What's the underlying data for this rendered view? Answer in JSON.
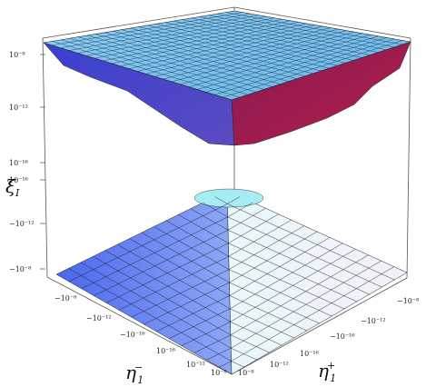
{
  "chart_data": {
    "type": "surface3d",
    "title": "",
    "zlabel": {
      "main": "ξ",
      "sub": "I"
    },
    "xlabel": {
      "main": "η",
      "sub": "1",
      "sup": "−"
    },
    "ylabel": {
      "main": "η",
      "sub": "1",
      "sup": "+"
    },
    "z_ticks": [
      "10⁻⁸",
      "10⁻¹²",
      "10⁻¹⁶",
      "10⁻¹⁶",
      "−10⁻¹²",
      "−10⁻⁸"
    ],
    "x_ticks": [
      "−10⁻⁸",
      "−10⁻¹²",
      "−10⁻¹⁶",
      "10⁻¹⁶",
      "10⁻¹²",
      "10⁻⁸"
    ],
    "y_ticks": [
      "−10⁻⁸",
      "−10⁻¹²",
      "−10⁻¹⁶",
      "10⁻¹⁶",
      "10⁻¹²",
      "10⁻⁸"
    ],
    "surfaces": [
      {
        "name": "upper",
        "shape": "inverted pyramid",
        "top_color": "#7fc3ee",
        "left_side_color": "#4a4bd0",
        "right_side_color": "#a01a4c"
      },
      {
        "name": "lower",
        "shape": "pyramid",
        "left_side_color": "#3e6ee8",
        "right_side_color": "#f4f2fa",
        "peak_color": "#9fe8f0"
      }
    ],
    "grid": true
  }
}
